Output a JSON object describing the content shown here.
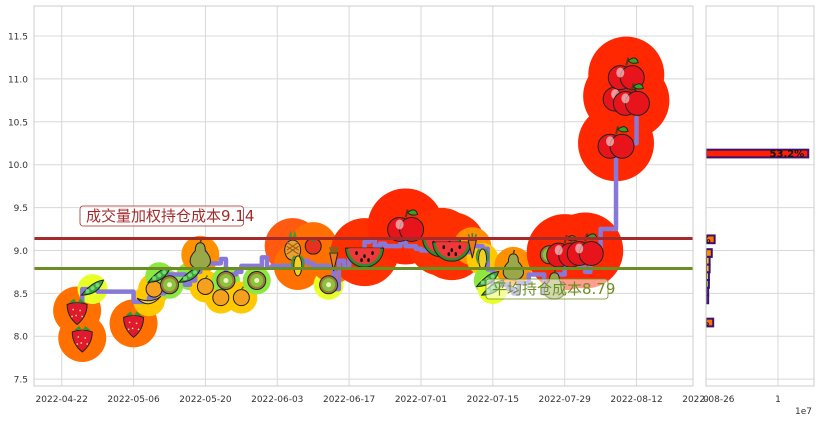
{
  "chart_data": [
    {
      "type": "line",
      "title": "",
      "xlabel": "",
      "ylabel": "",
      "ylim": [
        7.42,
        11.85
      ],
      "grid": true,
      "x_ticks": [
        "2022-04-22",
        "2022-05-06",
        "2022-05-20",
        "2022-06-03",
        "2022-06-17",
        "2022-07-01",
        "2022-07-15",
        "2022-07-29",
        "2022-08-12",
        "2022-08-26"
      ],
      "y_ticks": [
        7.5,
        8.0,
        8.5,
        9.0,
        9.5,
        10.0,
        10.5,
        11.0,
        11.5
      ],
      "series": [
        {
          "color": "#8878d8",
          "x": [
            "2022-04-25",
            "2022-04-26",
            "2022-04-27",
            "2022-04-28",
            "2022-04-29",
            "2022-05-05",
            "2022-05-06",
            "2022-05-09",
            "2022-05-10",
            "2022-05-11",
            "2022-05-12",
            "2022-05-13",
            "2022-05-16",
            "2022-05-17",
            "2022-05-18",
            "2022-05-19",
            "2022-05-20",
            "2022-05-23",
            "2022-05-24",
            "2022-05-25",
            "2022-05-26",
            "2022-05-27",
            "2022-05-30",
            "2022-05-31",
            "2022-06-01",
            "2022-06-02",
            "2022-06-06",
            "2022-06-07",
            "2022-06-08",
            "2022-06-09",
            "2022-06-10",
            "2022-06-13",
            "2022-06-14",
            "2022-06-15",
            "2022-06-16",
            "2022-06-17",
            "2022-06-20",
            "2022-06-21",
            "2022-06-22",
            "2022-06-23",
            "2022-06-24",
            "2022-06-27",
            "2022-06-28",
            "2022-06-29",
            "2022-06-30",
            "2022-07-01",
            "2022-07-04",
            "2022-07-05",
            "2022-07-06",
            "2022-07-07",
            "2022-07-08",
            "2022-07-11",
            "2022-07-12",
            "2022-07-13",
            "2022-07-14",
            "2022-07-15",
            "2022-07-18",
            "2022-07-19",
            "2022-07-20",
            "2022-07-21",
            "2022-07-22",
            "2022-07-25",
            "2022-07-26",
            "2022-07-27",
            "2022-07-28",
            "2022-07-29",
            "2022-08-01",
            "2022-08-02",
            "2022-08-03",
            "2022-08-04",
            "2022-08-05",
            "2022-08-08",
            "2022-08-09",
            "2022-08-10",
            "2022-08-11",
            "2022-08-12"
          ],
          "values": [
            8.3,
            8.55,
            8.55,
            8.55,
            8.52,
            8.52,
            8.4,
            8.45,
            8.55,
            8.5,
            8.65,
            8.72,
            8.6,
            8.65,
            8.75,
            8.98,
            8.85,
            8.9,
            8.72,
            8.72,
            8.75,
            8.82,
            8.82,
            8.92,
            8.8,
            8.82,
            8.82,
            8.85,
            8.88,
            8.85,
            8.82,
            8.8,
            8.55,
            8.88,
            8.8,
            9.0,
            9.1,
            9.12,
            9.05,
            9.08,
            9.05,
            9.1,
            9.05,
            9.05,
            9.02,
            9.0,
            9.02,
            9.0,
            9.03,
            9.0,
            8.98,
            9.05,
            9.05,
            9.02,
            8.78,
            8.6,
            8.55,
            8.5,
            8.62,
            8.62,
            8.72,
            8.5,
            8.5,
            8.72,
            8.72,
            8.98,
            8.8,
            8.75,
            9.0,
            9.0,
            9.25,
            10.25,
            10.2,
            10.22,
            10.25,
            10.55
          ]
        }
      ],
      "fruit_bubbles": [
        {
          "x": "2022-04-25",
          "y": 8.3,
          "fruit": "strawberry",
          "bubble_color": "#ff7000"
        },
        {
          "x": "2022-04-26",
          "y": 7.98,
          "fruit": "strawberry",
          "bubble_color": "#ff7000"
        },
        {
          "x": "2022-04-28",
          "y": 8.55,
          "fruit": "pea-pod",
          "bubble_color": "#e8ff28"
        },
        {
          "x": "2022-05-06",
          "y": 8.15,
          "fruit": "strawberry",
          "bubble_color": "#ff7000"
        },
        {
          "x": "2022-05-09",
          "y": 8.42,
          "fruit": "banana",
          "bubble_color": "#ffc800"
        },
        {
          "x": "2022-05-10",
          "y": 8.55,
          "fruit": "orange",
          "bubble_color": "#ffc800"
        },
        {
          "x": "2022-05-11",
          "y": 8.7,
          "fruit": "pea-pod",
          "bubble_color": "#8ce840"
        },
        {
          "x": "2022-05-13",
          "y": 8.6,
          "fruit": "kiwi",
          "bubble_color": "#8ce840"
        },
        {
          "x": "2022-05-17",
          "y": 8.7,
          "fruit": "pea-pod",
          "bubble_color": "#8ce840"
        },
        {
          "x": "2022-05-19",
          "y": 8.95,
          "fruit": "pear",
          "bubble_color": "#ff9000"
        },
        {
          "x": "2022-05-20",
          "y": 8.58,
          "fruit": "orange",
          "bubble_color": "#ffc800"
        },
        {
          "x": "2022-05-23",
          "y": 8.45,
          "fruit": "orange",
          "bubble_color": "#ffc800"
        },
        {
          "x": "2022-05-24",
          "y": 8.65,
          "fruit": "kiwi",
          "bubble_color": "#8ce840"
        },
        {
          "x": "2022-05-27",
          "y": 8.45,
          "fruit": "orange",
          "bubble_color": "#ffc800"
        },
        {
          "x": "2022-05-30",
          "y": 8.65,
          "fruit": "kiwi",
          "bubble_color": "#8ce840"
        },
        {
          "x": "2022-06-06",
          "y": 9.05,
          "fruit": "pineapple",
          "bubble_color": "#ff5a10"
        },
        {
          "x": "2022-06-07",
          "y": 8.82,
          "fruit": "corn",
          "bubble_color": "#ff7000"
        },
        {
          "x": "2022-06-10",
          "y": 9.05,
          "fruit": "tomato",
          "bubble_color": "#ff7000"
        },
        {
          "x": "2022-06-13",
          "y": 8.6,
          "fruit": "kiwi",
          "bubble_color": "#e8ff28"
        },
        {
          "x": "2022-06-14",
          "y": 8.9,
          "fruit": "carrot",
          "bubble_color": "#ff7000"
        },
        {
          "x": "2022-06-20",
          "y": 8.98,
          "fruit": "watermelon",
          "bubble_color": "#ff3000"
        },
        {
          "x": "2022-06-28",
          "y": 9.28,
          "fruit": "apple",
          "bubble_color": "#ff2800"
        },
        {
          "x": "2022-07-05",
          "y": 9.1,
          "fruit": "watermelon",
          "bubble_color": "#ff3000"
        },
        {
          "x": "2022-07-07",
          "y": 9.05,
          "fruit": "watermelon",
          "bubble_color": "#ff3000"
        },
        {
          "x": "2022-07-11",
          "y": 9.05,
          "fruit": "carrot",
          "bubble_color": "#ff9000"
        },
        {
          "x": "2022-07-13",
          "y": 8.9,
          "fruit": "corn",
          "bubble_color": "#ffc800"
        },
        {
          "x": "2022-07-14",
          "y": 8.65,
          "fruit": "pea-pod",
          "bubble_color": "#8ce840"
        },
        {
          "x": "2022-07-15",
          "y": 8.55,
          "fruit": "pea-pod",
          "bubble_color": "#e8ff28"
        },
        {
          "x": "2022-07-19",
          "y": 8.82,
          "fruit": "pear",
          "bubble_color": "#ff9000"
        },
        {
          "x": "2022-07-26",
          "y": 8.95,
          "fruit": "kiwi",
          "bubble_color": "#ffc800"
        },
        {
          "x": "2022-07-27",
          "y": 8.6,
          "fruit": "pear",
          "bubble_color": "#e8ff28"
        },
        {
          "x": "2022-07-29",
          "y": 8.98,
          "fruit": "apple",
          "bubble_color": "#ff2800"
        },
        {
          "x": "2022-08-02",
          "y": 9.0,
          "fruit": "apple",
          "bubble_color": "#ff2800"
        },
        {
          "x": "2022-08-08",
          "y": 10.25,
          "fruit": "apple",
          "bubble_color": "#ff2800"
        },
        {
          "x": "2022-08-09",
          "y": 10.8,
          "fruit": "apple",
          "bubble_color": "#ff2800"
        },
        {
          "x": "2022-08-10",
          "y": 11.05,
          "fruit": "apple",
          "bubble_color": "#ff2800"
        },
        {
          "x": "2022-08-11",
          "y": 10.75,
          "fruit": "apple",
          "bubble_color": "#ff2800"
        }
      ],
      "reference_lines": [
        {
          "y": 9.14,
          "color": "#a52a2a",
          "label": "成交量加权持仓成本9.14"
        },
        {
          "y": 8.79,
          "color": "#6b8e23",
          "label": "平均持仓成本8.79"
        }
      ]
    },
    {
      "type": "bar",
      "orientation": "horizontal",
      "x_ticks": [
        "0",
        "1"
      ],
      "x_scale_label": "1e7",
      "xlim": [
        0,
        1.5
      ],
      "bars": [
        {
          "y": 10.13,
          "value": 1.42,
          "color": "#ff2000",
          "label": "53.2%"
        },
        {
          "y": 9.13,
          "value": 0.12,
          "color": "#ff7000",
          "label": "%"
        },
        {
          "y": 8.97,
          "value": 0.08,
          "color": "#ff9000",
          "label": ""
        },
        {
          "y": 8.88,
          "value": 0.05,
          "color": "#ffc800",
          "label": ""
        },
        {
          "y": 8.79,
          "value": 0.05,
          "color": "#ffc800",
          "label": ""
        },
        {
          "y": 8.7,
          "value": 0.04,
          "color": "#e8ff28",
          "label": ""
        },
        {
          "y": 8.61,
          "value": 0.04,
          "color": "#8ce840",
          "label": ""
        },
        {
          "y": 8.52,
          "value": 0.03,
          "color": "#8ce840",
          "label": ""
        },
        {
          "y": 8.43,
          "value": 0.03,
          "color": "#8ce840",
          "label": ""
        },
        {
          "y": 8.16,
          "value": 0.1,
          "color": "#ff7000",
          "label": "%"
        }
      ]
    }
  ]
}
